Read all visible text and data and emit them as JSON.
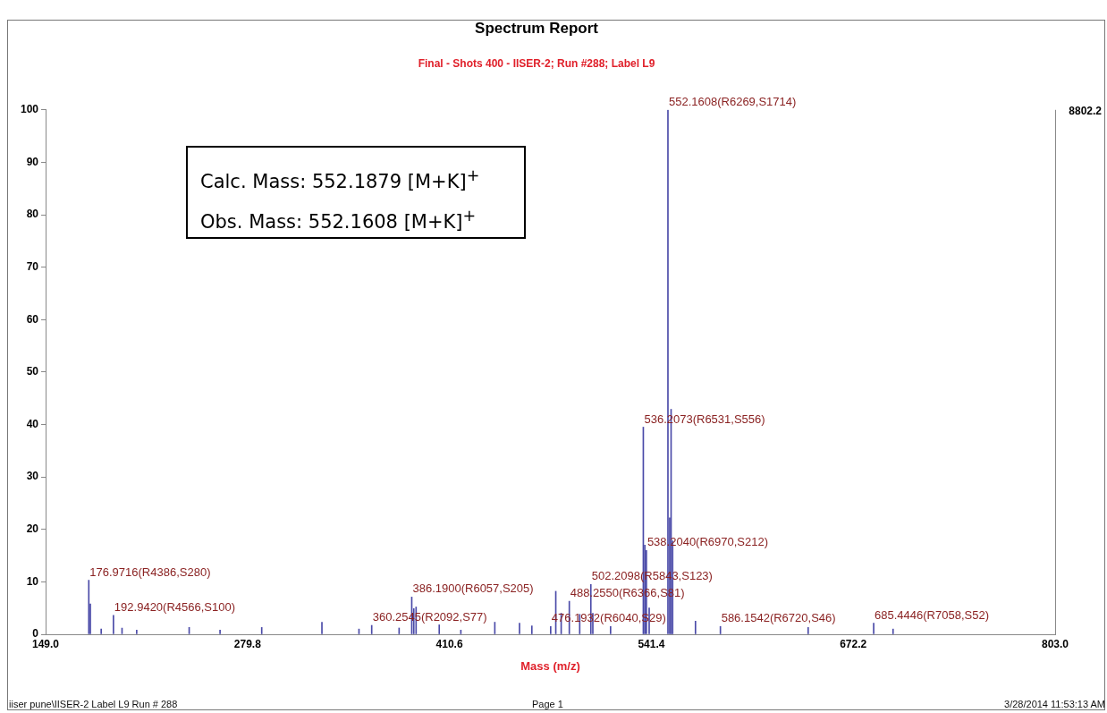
{
  "chart_data": {
    "type": "bar",
    "title": "Spectrum Report",
    "subtitle": "Final - Shots 400 - IISER-2; Run #288; Label L9",
    "xlabel": "Mass (m/z)",
    "x": [
      176.97,
      177.97,
      185.0,
      192.94,
      198.5,
      208.0,
      242.0,
      262.0,
      289.0,
      328.0,
      352.0,
      360.25,
      378.0,
      386.19,
      387.5,
      389.0,
      404.0,
      418.0,
      440.0,
      456.0,
      464.0,
      476.19,
      479.5,
      483.0,
      488.26,
      495.0,
      502.21,
      503.5,
      515.0,
      536.21,
      537.2,
      538.2,
      540.0,
      552.16,
      553.3,
      554.2,
      555.2,
      570.0,
      586.15,
      643.0,
      685.44,
      698.0
    ],
    "values": [
      10.3,
      5.8,
      1.0,
      3.6,
      1.2,
      0.8,
      1.3,
      0.8,
      1.3,
      2.3,
      1.0,
      1.7,
      1.2,
      7.1,
      4.9,
      5.2,
      1.8,
      0.8,
      2.3,
      2.1,
      1.6,
      1.5,
      8.2,
      4.0,
      6.3,
      3.8,
      9.5,
      4.0,
      1.5,
      39.5,
      17.0,
      16.0,
      5.0,
      100,
      22.2,
      42.9,
      17.8,
      2.5,
      1.5,
      1.3,
      2.1,
      1.0
    ],
    "color": "#4a4aa8",
    "xlim": [
      149.0,
      803.0
    ],
    "xticks": [
      {
        "value": 149.0,
        "label": "149.0"
      },
      {
        "value": 279.8,
        "label": "279.8"
      },
      {
        "value": 410.6,
        "label": "410.6"
      },
      {
        "value": 541.4,
        "label": "541.4"
      },
      {
        "value": 672.2,
        "label": "672.2"
      },
      {
        "value": 803.0,
        "label": "803.0"
      }
    ],
    "ylim": [
      0,
      100
    ],
    "yticks": [
      0,
      10,
      20,
      30,
      40,
      50,
      60,
      70,
      80,
      90,
      100
    ],
    "grid": false,
    "legend": false,
    "annotations": [
      "Calc. Mass: 552.1879 [M+K]$^{+}$",
      "Obs. Mass: 552.1608 [M+K]$^{+}$",
      "8802.2",
      "iiser pune\\IISER-2 Label L9 Run # 288",
      "Page 1",
      "3/28/2014 11:53:13 AM",
      {
        "text": "176.9716(R4386,S280)",
        "x": 176.97,
        "y": 10.3
      },
      {
        "text": "192.9420(R4566,S100)",
        "x": 192.94,
        "y": 3.6
      },
      {
        "text": "360.2545(R2092,S77)",
        "x": 360.25,
        "y": 1.7
      },
      {
        "text": "386.1900(R6057,S205)",
        "x": 386.19,
        "y": 7.1
      },
      {
        "text": "476.1932(R6040,S29)",
        "x": 476.19,
        "y": 1.5
      },
      {
        "text": "488.2550(R6366,S81)",
        "x": 488.26,
        "y": 6.3
      },
      {
        "text": "502.2098(R5843,S123)",
        "x": 502.21,
        "y": 9.5
      },
      {
        "text": "536.2073(R6531,S556)",
        "x": 536.21,
        "y": 39.5
      },
      {
        "text": "538.2040(R6970,S212)",
        "x": 538.2,
        "y": 16.0
      },
      {
        "text": "552.1608(R6269,S1714)",
        "x": 552.16,
        "y": 100
      },
      {
        "text": "586.1542(R6720,S46)",
        "x": 586.15,
        "y": 1.5
      },
      {
        "text": "685.4446(R7058,S52)",
        "x": 685.44,
        "y": 2.1
      }
    ]
  }
}
